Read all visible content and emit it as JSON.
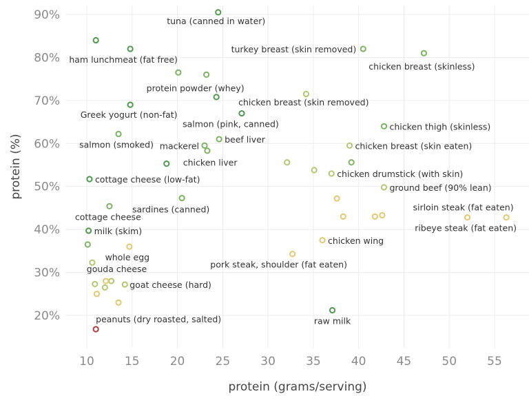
{
  "chart_data": {
    "type": "scatter",
    "xlabel": "protein (grams/serving)",
    "ylabel": "protein (%)",
    "xlim": [
      7.5,
      58.5
    ],
    "ylim": [
      12,
      93
    ],
    "x_ticks": [
      10,
      15,
      20,
      25,
      30,
      35,
      40,
      45,
      50,
      55
    ],
    "y_ticks": [
      20,
      30,
      40,
      50,
      60,
      70,
      80,
      90
    ],
    "y_tick_labels": [
      "20%",
      "30%",
      "40%",
      "50%",
      "60%",
      "70%",
      "80%",
      "90%"
    ],
    "grid": true,
    "colors": {
      "dark_green": "#4e9a4e",
      "green": "#7cb561",
      "light_green": "#b2c870",
      "yellow": "#e3c86e",
      "red": "#b83c3c"
    },
    "points": [
      {
        "x": 24.5,
        "y": 90.5,
        "label": "tuna (canned in water)",
        "color": "#4e9a4e",
        "anchor": "middle",
        "dx": -3,
        "dy": 17
      },
      {
        "x": 11.0,
        "y": 84,
        "label": "",
        "color": "#4e9a4e"
      },
      {
        "x": 14.8,
        "y": 82,
        "label": "ham lunchmeat (fat free)",
        "color": "#4e9a4e",
        "anchor": "middle",
        "dx": -10,
        "dy": 20
      },
      {
        "x": 40.5,
        "y": 82,
        "label": "turkey breast (skin removed)",
        "color": "#7cb561",
        "anchor": "end",
        "dx": -10,
        "dy": 5
      },
      {
        "x": 47.2,
        "y": 81,
        "label": "chicken breast (skinless)",
        "color": "#7cb561",
        "anchor": "middle",
        "dx": -3,
        "dy": 24
      },
      {
        "x": 20.1,
        "y": 76.5,
        "label": "",
        "color": "#7cb561"
      },
      {
        "x": 23.2,
        "y": 76,
        "label": "protein powder (whey)",
        "color": "#7cb561",
        "anchor": "middle",
        "dx": -16,
        "dy": 24
      },
      {
        "x": 34.2,
        "y": 71.5,
        "label": "",
        "color": "#b2c870"
      },
      {
        "x": 24.3,
        "y": 70.8,
        "label": "chicken breast (skin removed)",
        "color": "#4e9a4e",
        "anchor": "start",
        "dx": 32,
        "dy": 12
      },
      {
        "x": 14.8,
        "y": 69,
        "label": "Greek yogurt (non-fat)",
        "color": "#4e9a4e",
        "anchor": "middle",
        "dx": -2,
        "dy": 19
      },
      {
        "x": 27.1,
        "y": 67,
        "label": "salmon (pink, canned)",
        "color": "#4e9a4e",
        "anchor": "middle",
        "dx": -16,
        "dy": 20
      },
      {
        "x": 42.8,
        "y": 64,
        "label": "chicken thigh (skinless)",
        "color": "#7cb561",
        "anchor": "start",
        "dx": 8,
        "dy": 5
      },
      {
        "x": 13.5,
        "y": 62.2,
        "label": "salmon (smoked)",
        "color": "#7cb561",
        "anchor": "middle",
        "dx": -3,
        "dy": 20
      },
      {
        "x": 24.6,
        "y": 61,
        "label": "beef liver",
        "color": "#7cb561",
        "anchor": "start",
        "dx": 8,
        "dy": 5
      },
      {
        "x": 39.0,
        "y": 59.5,
        "label": "chicken breast (skin eaten)",
        "color": "#b2c870",
        "anchor": "start",
        "dx": 8,
        "dy": 5
      },
      {
        "x": 23.0,
        "y": 59.5,
        "label": "mackerel",
        "color": "#7cb561",
        "anchor": "end",
        "dx": -8,
        "dy": 5
      },
      {
        "x": 23.3,
        "y": 58.3,
        "label": "",
        "color": "#7cb561"
      },
      {
        "x": 18.8,
        "y": 55.3,
        "label": "chicken liver",
        "color": "#4e9a4e",
        "anchor": "start",
        "dx": 24,
        "dy": 3
      },
      {
        "x": 32.1,
        "y": 55.6,
        "label": "",
        "color": "#b2c870"
      },
      {
        "x": 39.2,
        "y": 55.6,
        "label": "",
        "color": "#7cb561"
      },
      {
        "x": 35.1,
        "y": 53.8,
        "label": "",
        "color": "#b2c870"
      },
      {
        "x": 37.0,
        "y": 53,
        "label": "chicken drumstick (with skin)",
        "color": "#b2c870",
        "anchor": "start",
        "dx": 8,
        "dy": 5
      },
      {
        "x": 10.3,
        "y": 51.7,
        "label": "cottage cheese (low-fat)",
        "color": "#4e9a4e",
        "anchor": "start",
        "dx": 8,
        "dy": 5
      },
      {
        "x": 42.8,
        "y": 49.8,
        "label": "ground beef (90% lean)",
        "color": "#b2c870",
        "anchor": "start",
        "dx": 8,
        "dy": 5
      },
      {
        "x": 37.6,
        "y": 47.2,
        "label": "",
        "color": "#e3c86e"
      },
      {
        "x": 20.5,
        "y": 47.3,
        "label": "sardines (canned)",
        "color": "#7cb561",
        "anchor": "middle",
        "dx": -16,
        "dy": 21
      },
      {
        "x": 12.5,
        "y": 45.4,
        "label": "cottage cheese",
        "color": "#7cb561",
        "anchor": "middle",
        "dx": -2,
        "dy": 20
      },
      {
        "x": 38.3,
        "y": 43,
        "label": "",
        "color": "#e3c86e"
      },
      {
        "x": 41.8,
        "y": 43,
        "label": "",
        "color": "#e3c86e"
      },
      {
        "x": 42.6,
        "y": 43.3,
        "label": "",
        "color": "#e3c86e"
      },
      {
        "x": 52.0,
        "y": 42.8,
        "label": "sirloin steak (fat eaten)",
        "color": "#e3c86e",
        "anchor": "middle",
        "dx": -6,
        "dy": -10
      },
      {
        "x": 56.3,
        "y": 42.8,
        "label": "ribeye steak (fat eaten)",
        "color": "#e3c86e",
        "anchor": "middle",
        "dx": -59,
        "dy": 20
      },
      {
        "x": 10.2,
        "y": 39.7,
        "label": "milk (skim)",
        "color": "#4e9a4e",
        "anchor": "start",
        "dx": 8,
        "dy": 5
      },
      {
        "x": 36.0,
        "y": 37.5,
        "label": "chicken wing",
        "color": "#e3c86e",
        "anchor": "start",
        "dx": 8,
        "dy": 5
      },
      {
        "x": 10.1,
        "y": 36.5,
        "label": "",
        "color": "#7cb561"
      },
      {
        "x": 14.7,
        "y": 36,
        "label": "whole egg",
        "color": "#e3c86e",
        "anchor": "middle",
        "dx": -3,
        "dy": 20
      },
      {
        "x": 32.7,
        "y": 34.3,
        "label": "pork steak, shoulder (fat eaten)",
        "color": "#e3c86e",
        "anchor": "middle",
        "dx": -20,
        "dy": 20
      },
      {
        "x": 10.6,
        "y": 32.3,
        "label": "",
        "color": "#b2c870"
      },
      {
        "x": 12.7,
        "y": 28,
        "label": "gouda cheese",
        "color": "#b2c870",
        "anchor": "middle",
        "dx": 8,
        "dy": -13
      },
      {
        "x": 12.1,
        "y": 28,
        "label": "",
        "color": "#e3c86e"
      },
      {
        "x": 10.9,
        "y": 27.3,
        "label": "",
        "color": "#b2c870"
      },
      {
        "x": 14.2,
        "y": 27.2,
        "label": "goat cheese (hard)",
        "color": "#b2c870",
        "anchor": "start",
        "dx": 7,
        "dy": 5
      },
      {
        "x": 12.0,
        "y": 26.5,
        "label": "",
        "color": "#b2c870"
      },
      {
        "x": 11.1,
        "y": 25,
        "label": "",
        "color": "#e3c86e"
      },
      {
        "x": 13.5,
        "y": 23,
        "label": "",
        "color": "#e3c86e"
      },
      {
        "x": 37.1,
        "y": 21.2,
        "label": "raw milk",
        "color": "#4e9a4e",
        "anchor": "middle",
        "dx": 0,
        "dy": 20
      },
      {
        "x": 11.0,
        "y": 16.8,
        "label": "peanuts (dry roasted, salted)",
        "color": "#b83c3c",
        "anchor": "start",
        "dx": 0,
        "dy": -10
      }
    ]
  }
}
